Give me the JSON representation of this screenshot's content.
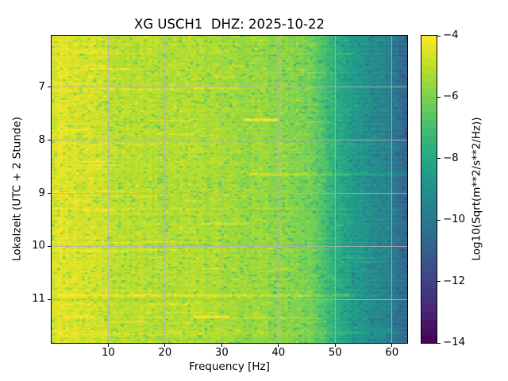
{
  "figure": {
    "background": "#ffffff"
  },
  "chart_data": {
    "type": "heatmap",
    "subtype": "spectrogram",
    "title": "XG USCH1  DHZ: 2025-10-22",
    "xlabel": "Frequency [Hz]",
    "ylabel": "Lokalzeit (UTC + 2 Stunde)",
    "colorbar_label": "Log10(Sqrt(m**2/s**2/Hz))",
    "colormap": "viridis",
    "grid": true,
    "x_ticks": [
      10,
      20,
      30,
      40,
      50,
      60
    ],
    "y_ticks": [
      7,
      8,
      9,
      10,
      11
    ],
    "colorbar_ticks": [
      -4,
      -6,
      -8,
      -10,
      -12,
      -14
    ],
    "xlim_hz": [
      0,
      62.7
    ],
    "ylim_localtime_hours": [
      6.03,
      11.82
    ],
    "clim_log10": [
      -14,
      -4
    ],
    "freq_profile_log10": {
      "freq_hz": [
        0,
        0.8,
        1.5,
        4,
        8,
        12,
        18,
        25,
        32,
        38,
        42,
        45,
        47,
        49,
        51,
        54,
        57,
        59.5,
        61,
        62.7
      ],
      "value": [
        -4.9,
        -4.5,
        -4.4,
        -4.5,
        -4.8,
        -5.0,
        -5.1,
        -5.25,
        -5.45,
        -5.6,
        -5.8,
        -6.1,
        -6.6,
        -7.3,
        -8.0,
        -8.7,
        -9.2,
        -9.6,
        -10.2,
        -10.8
      ]
    },
    "events": [
      {
        "time_h": 7.62,
        "f_start_hz": 34,
        "f_end_hz": 40,
        "boost": 1.6
      },
      {
        "time_h": 8.3,
        "f_start_hz": 40,
        "f_end_hz": 56,
        "boost": 0.45
      },
      {
        "time_h": 8.65,
        "f_start_hz": 35,
        "f_end_hz": 62.5,
        "boost": 0.9
      },
      {
        "time_h": 10.93,
        "f_start_hz": 1,
        "f_end_hz": 53,
        "boost": 0.7
      },
      {
        "time_h": 11.33,
        "f_start_hz": 25,
        "f_end_hz": 31,
        "boost": 1.7
      },
      {
        "time_h": 11.35,
        "f_start_hz": 31,
        "f_end_hz": 47,
        "boost": 0.7
      }
    ]
  },
  "colors": {
    "grid": "#b0b0b0",
    "axis": "#000000",
    "text": "#000000",
    "viridis_stops": [
      "#440154",
      "#482878",
      "#3e4989",
      "#31688e",
      "#26828e",
      "#1f9e89",
      "#35b779",
      "#6ece58",
      "#b5de2b",
      "#fde725"
    ]
  }
}
